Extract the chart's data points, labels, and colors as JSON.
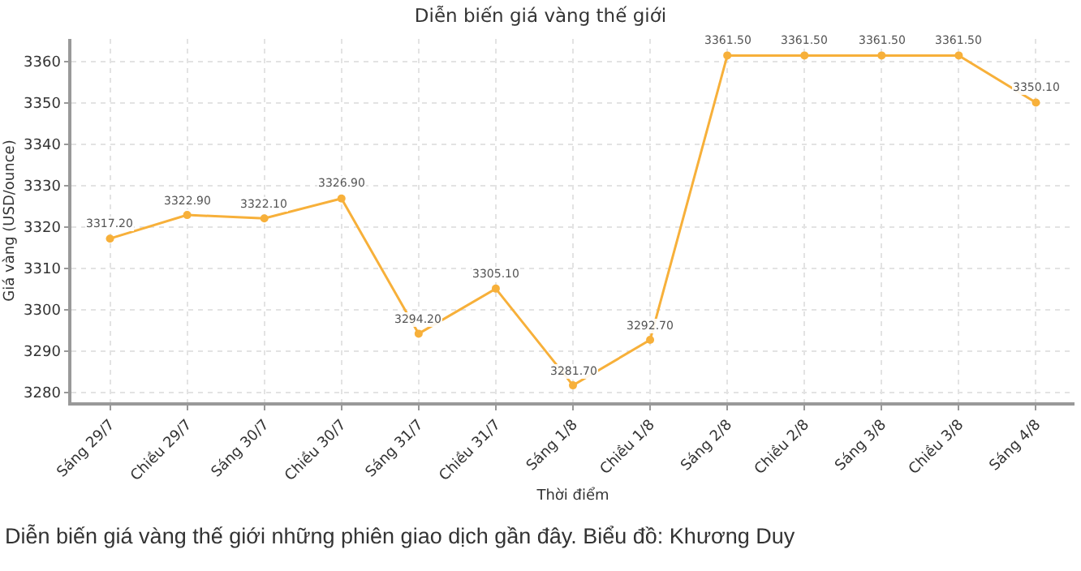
{
  "chart_data": {
    "type": "line",
    "title": "Diễn biến giá vàng thế giới",
    "xlabel": "Thời điểm",
    "ylabel": "Giá vàng (USD/ounce)",
    "categories": [
      "Sáng 29/7",
      "Chiều 29/7",
      "Sáng 30/7",
      "Chiều 30/7",
      "Sáng 31/7",
      "Chiều 31/7",
      "Sáng 1/8",
      "Chiều 1/8",
      "Sáng 2/8",
      "Chiều 2/8",
      "Sáng 3/8",
      "Chiều 3/8",
      "Sáng 4/8"
    ],
    "series": [
      {
        "color": "#f7b03a",
        "values": [
          3317.2,
          3322.9,
          3322.1,
          3326.9,
          3294.2,
          3305.1,
          3281.7,
          3292.7,
          3361.5,
          3361.5,
          3361.5,
          3361.5,
          3350.1
        ],
        "value_labels": [
          "3317.20",
          "3322.90",
          "3322.10",
          "3326.90",
          "3294.20",
          "3305.10",
          "3281.70",
          "3292.70",
          "3361.50",
          "3361.50",
          "3361.50",
          "3361.50",
          "3350.10"
        ]
      }
    ],
    "ylim": [
      3277.6,
      3365.5
    ],
    "yticks": [
      3280,
      3290,
      3300,
      3310,
      3320,
      3330,
      3340,
      3350,
      3360
    ],
    "grid": true,
    "marker": "circle",
    "line_style": "solid",
    "annotations": [
      "Diễn biến giá vàng thế giới những phiên giao dịch gần đây. Biểu đồ: Khương Duy"
    ]
  }
}
